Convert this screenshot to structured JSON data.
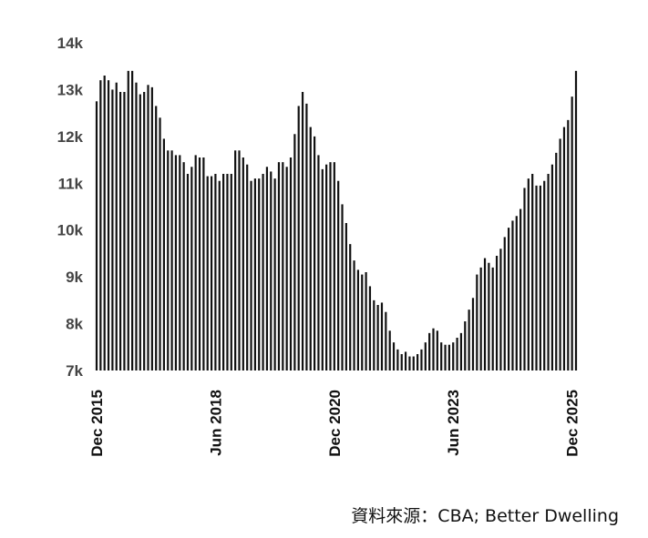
{
  "chart_data": {
    "type": "bar",
    "y_ticks": [
      "7k",
      "8k",
      "9k",
      "10k",
      "11k",
      "12k",
      "13k",
      "14k"
    ],
    "ylim": [
      7000,
      14000
    ],
    "x_labels": [
      {
        "label": "Dec 2015",
        "index": 0
      },
      {
        "label": "Jun 2018",
        "index": 30
      },
      {
        "label": "Dec 2020",
        "index": 60
      },
      {
        "label": "Jun 2023",
        "index": 90
      },
      {
        "label": "Dec 2025",
        "index": 120
      }
    ],
    "bar_color": "#111111",
    "grid": false,
    "legend": "none",
    "values": [
      12750,
      13200,
      13300,
      13200,
      13000,
      13150,
      12950,
      12950,
      13400,
      13400,
      13150,
      12900,
      12950,
      13100,
      13050,
      12650,
      12400,
      11950,
      11700,
      11700,
      11600,
      11600,
      11450,
      11200,
      11350,
      11600,
      11550,
      11550,
      11150,
      11150,
      11200,
      11050,
      11200,
      11200,
      11200,
      11700,
      11700,
      11550,
      11400,
      11050,
      11100,
      11100,
      11200,
      11350,
      11250,
      11100,
      11450,
      11450,
      11350,
      11550,
      12050,
      12650,
      12950,
      12700,
      12200,
      12000,
      11600,
      11300,
      11400,
      11450,
      11450,
      11050,
      10550,
      10150,
      9700,
      9350,
      9150,
      9050,
      9100,
      8800,
      8500,
      8400,
      8450,
      8250,
      7850,
      7600,
      7450,
      7350,
      7400,
      7300,
      7300,
      7350,
      7450,
      7600,
      7800,
      7900,
      7850,
      7600,
      7550,
      7550,
      7600,
      7700,
      7800,
      8050,
      8300,
      8550,
      9050,
      9200,
      9400,
      9300,
      9200,
      9450,
      9600,
      9850,
      10050,
      10200,
      10300,
      10450,
      10900,
      11100,
      11200,
      10950,
      10950,
      11050,
      11200,
      11400,
      11650,
      11950,
      12200,
      12350,
      12850,
      13400
    ]
  },
  "source": "資料來源：CBA; Better Dwelling"
}
